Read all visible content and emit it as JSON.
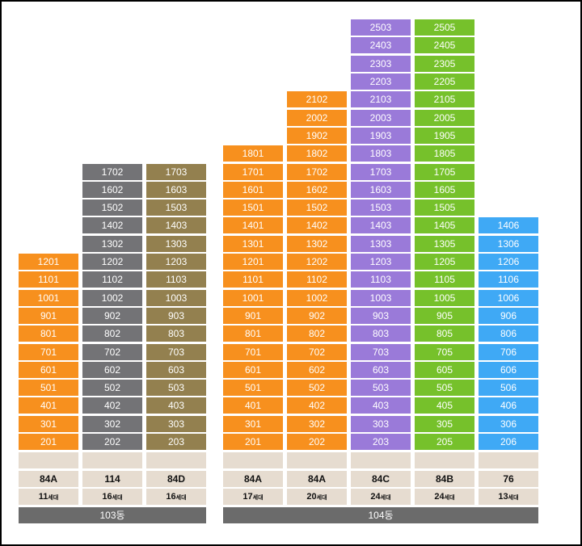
{
  "colors": {
    "orange": "#f7901e",
    "gray": "#737376",
    "olive": "#93804f",
    "purple": "#9a7ad9",
    "green": "#76c12b",
    "blue": "#3fa9f5",
    "beige": "#e6dcd0",
    "building_bar": "#6b6b6b"
  },
  "columns": [
    {
      "id": "c1",
      "color": "orange",
      "units": [
        "1201",
        "1101",
        "1001",
        "901",
        "801",
        "701",
        "601",
        "501",
        "401",
        "301",
        "201"
      ],
      "type": "84A",
      "households": "11",
      "households_suffix": "세대"
    },
    {
      "id": "c2",
      "color": "gray",
      "units": [
        "1702",
        "1602",
        "1502",
        "1402",
        "1302",
        "1202",
        "1102",
        "1002",
        "902",
        "802",
        "702",
        "602",
        "502",
        "402",
        "302",
        "202"
      ],
      "type": "114",
      "households": "16",
      "households_suffix": "세대"
    },
    {
      "id": "c3",
      "color": "olive",
      "units": [
        "1703",
        "1603",
        "1503",
        "1403",
        "1303",
        "1203",
        "1103",
        "1003",
        "903",
        "803",
        "703",
        "603",
        "503",
        "403",
        "303",
        "203"
      ],
      "type": "84D",
      "households": "16",
      "households_suffix": "세대"
    },
    {
      "id": "c4",
      "color": "orange",
      "units": [
        "1801",
        "1701",
        "1601",
        "1501",
        "1401",
        "1301",
        "1201",
        "1101",
        "1001",
        "901",
        "801",
        "701",
        "601",
        "501",
        "401",
        "301",
        "201"
      ],
      "type": "84A",
      "households": "17",
      "households_suffix": "세대"
    },
    {
      "id": "c5",
      "color": "orange",
      "units": [
        "2102",
        "2002",
        "1902",
        "1802",
        "1702",
        "1602",
        "1502",
        "1402",
        "1302",
        "1202",
        "1102",
        "1002",
        "902",
        "802",
        "702",
        "602",
        "502",
        "402",
        "302",
        "202"
      ],
      "type": "84A",
      "households": "20",
      "households_suffix": "세대"
    },
    {
      "id": "c6",
      "color": "purple",
      "units": [
        "2503",
        "2403",
        "2303",
        "2203",
        "2103",
        "2003",
        "1903",
        "1803",
        "1703",
        "1603",
        "1503",
        "1403",
        "1303",
        "1203",
        "1103",
        "1003",
        "903",
        "803",
        "703",
        "603",
        "503",
        "403",
        "303",
        "203"
      ],
      "type": "84C",
      "households": "24",
      "households_suffix": "세대"
    },
    {
      "id": "c7",
      "color": "green",
      "units": [
        "2505",
        "2405",
        "2305",
        "2205",
        "2105",
        "2005",
        "1905",
        "1805",
        "1705",
        "1605",
        "1505",
        "1405",
        "1305",
        "1205",
        "1105",
        "1005",
        "905",
        "805",
        "705",
        "605",
        "505",
        "405",
        "305",
        "205"
      ],
      "type": "84B",
      "households": "24",
      "households_suffix": "세대"
    },
    {
      "id": "c8",
      "color": "blue",
      "units": [
        "1406",
        "1306",
        "1206",
        "1106",
        "1006",
        "906",
        "806",
        "706",
        "606",
        "506",
        "406",
        "306",
        "206"
      ],
      "type": "76",
      "households": "13",
      "households_suffix": "세대"
    }
  ],
  "buildings": [
    {
      "id": "b103",
      "label": "103동"
    },
    {
      "id": "b104",
      "label": "104동"
    }
  ]
}
